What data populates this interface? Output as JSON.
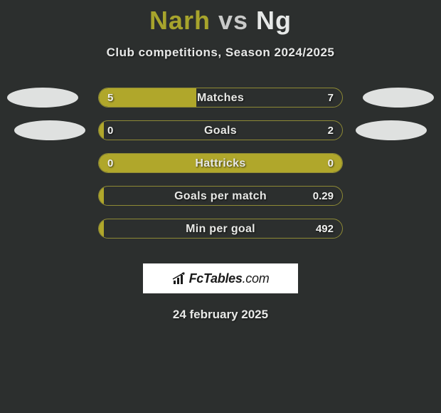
{
  "title": {
    "left": "Narh",
    "vs": "vs",
    "right": "Ng",
    "left_color": "#a7a42c",
    "vs_color": "#c9cac9",
    "right_color": "#e6e8e7",
    "fontsize": 36
  },
  "subtitle": "Club competitions, Season 2024/2025",
  "background_color": "#2c2f2e",
  "bar": {
    "fill_color": "#b0a72b",
    "border_color": "#8e8a35",
    "track_width": 344,
    "track_height": 28,
    "border_radius": 14,
    "label_color": "#e8e9e6",
    "value_color": "#f0f1ef",
    "label_fontsize": 16,
    "value_fontsize": 15
  },
  "ellipse": {
    "color": "#dfe1e0",
    "width": 100,
    "height": 28,
    "left_positions": [
      17,
      35
    ],
    "right_positions": [
      17,
      35
    ]
  },
  "rows": [
    {
      "label": "Matches",
      "left": "5",
      "right": "7",
      "fill_pct": 40,
      "show_left_ellipse": true,
      "show_right_ellipse": true
    },
    {
      "label": "Goals",
      "left": "0",
      "right": "2",
      "fill_pct": 2,
      "show_left_ellipse": true,
      "show_right_ellipse": true
    },
    {
      "label": "Hattricks",
      "left": "0",
      "right": "0",
      "fill_pct": 100,
      "show_left_ellipse": false,
      "show_right_ellipse": false
    },
    {
      "label": "Goals per match",
      "left": "",
      "right": "0.29",
      "fill_pct": 2,
      "show_left_ellipse": false,
      "show_right_ellipse": false
    },
    {
      "label": "Min per goal",
      "left": "",
      "right": "492",
      "fill_pct": 2,
      "show_left_ellipse": false,
      "show_right_ellipse": false
    }
  ],
  "logo": {
    "text_bold": "FcTables",
    "text_light": ".com",
    "box_bg": "#ffffff",
    "text_color": "#1a1a1a",
    "fontsize": 18,
    "icon_color": "#1a1a1a"
  },
  "date": "24 february 2025"
}
